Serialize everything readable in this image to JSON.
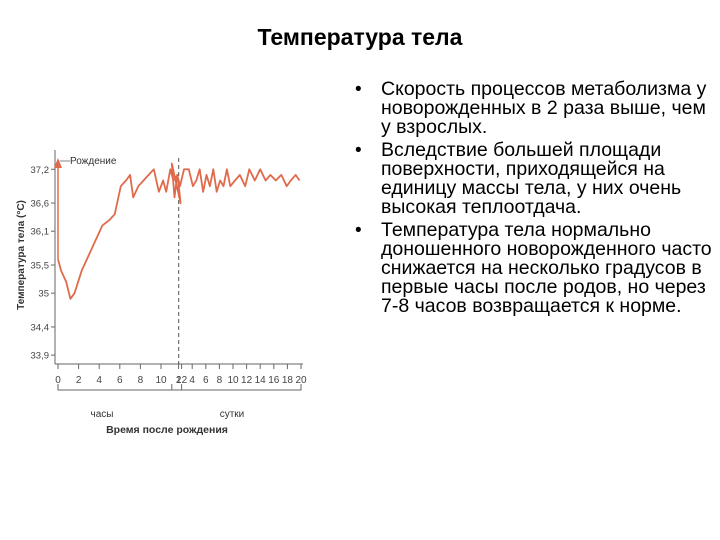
{
  "slide": {
    "title": "Температура тела",
    "bullets": [
      "Скорость процессов метаболизма у новорожденных в 2 раза выше, чем у взрослых.",
      "Вследствие большей площади поверхности, приходящейся на единицу массы тела, у них очень высокая теплоотдача.",
      "Температура тела нормально доношенного новорожденного часто снижается на несколько градусов в первые часы после родов, но через 7-8 часов возвращается к норме."
    ]
  },
  "chart_data": {
    "type": "line",
    "title": "",
    "ylabel": "Температура тела (°С)",
    "xlabel": "Время после рождения",
    "ylim": [
      33.6,
      37.4
    ],
    "y_ticks": [
      "37,2",
      "36,6",
      "36,1",
      "35,5",
      "35",
      "34,4",
      "33,9"
    ],
    "y_tick_values": [
      37.2,
      36.6,
      36.1,
      35.5,
      35.0,
      34.4,
      33.9
    ],
    "hours_ticks": [
      "0",
      "2",
      "4",
      "6",
      "8",
      "10",
      "12"
    ],
    "days_ticks": [
      "2",
      "4",
      "6",
      "8",
      "10",
      "12",
      "14",
      "16",
      "18",
      "20"
    ],
    "x_group_labels": [
      "часы",
      "сутки"
    ],
    "annotation": "Рождение",
    "line_color": "#e06a4c",
    "series": [
      {
        "hours": [
          0,
          0.3,
          0.8,
          1.2,
          1.6,
          2.3,
          3.3,
          4.3,
          5.0,
          5.5,
          6.1,
          6.6,
          7.0,
          7.3,
          7.8,
          8.3,
          8.8,
          9.3,
          9.8,
          10.2,
          10.5,
          10.9,
          11.2,
          11.6,
          11.9
        ],
        "hours_values": [
          35.6,
          35.4,
          35.2,
          34.9,
          35.0,
          35.4,
          35.8,
          36.2,
          36.3,
          36.4,
          36.9,
          37.0,
          37.1,
          36.7,
          36.9,
          37.0,
          37.1,
          37.2,
          36.8,
          37.0,
          36.8,
          37.2,
          37.0,
          37.1,
          36.6
        ],
        "days": [
          1.0,
          1.4,
          1.8,
          2.2,
          2.8,
          3.5,
          4.1,
          4.6,
          5.1,
          5.6,
          6.1,
          6.6,
          7.1,
          7.6,
          8.1,
          8.6,
          9.1,
          9.6,
          10.3,
          11.0,
          11.8,
          12.4,
          13.2,
          14.0,
          14.8,
          15.5,
          16.3,
          17.1,
          17.9,
          18.5,
          19.2,
          19.8
        ],
        "days_values": [
          37.3,
          36.7,
          37.1,
          36.9,
          37.2,
          37.2,
          36.9,
          37.0,
          37.2,
          36.8,
          37.1,
          36.9,
          37.2,
          36.8,
          37.0,
          36.9,
          37.2,
          36.9,
          37.0,
          37.1,
          36.9,
          37.2,
          37.0,
          37.2,
          37.0,
          37.1,
          37.0,
          37.1,
          36.9,
          37.0,
          37.1,
          37.0
        ]
      }
    ]
  }
}
